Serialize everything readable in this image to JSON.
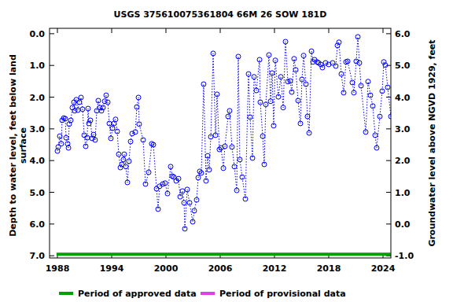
{
  "chart_data": {
    "type": "scatter",
    "title": "USGS 375610075361804 66M 26 SOW 181D",
    "y_label": "Depth to water level, feet below land surface",
    "y2_label": "Groundwater level above NGVD 1929, feet",
    "xlim": [
      1987.13,
      2024.87
    ],
    "xticks": [
      1988,
      1994,
      2000,
      2006,
      2012,
      2018,
      2024
    ],
    "ylim": [
      7.07,
      -0.17
    ],
    "yticks": [
      {
        "value": 0,
        "label": "0.0"
      },
      {
        "value": 1,
        "label": "1.0"
      },
      {
        "value": 2,
        "label": "2.0"
      },
      {
        "value": 3,
        "label": "3.0"
      },
      {
        "value": 4,
        "label": "4.0"
      },
      {
        "value": 5,
        "label": "5.0"
      },
      {
        "value": 6,
        "label": "6.0"
      },
      {
        "value": 7,
        "label": "7.0"
      }
    ],
    "y2lim": [
      -1.07,
      6.17
    ],
    "y2ticks": [
      {
        "value": -1,
        "label": "-1.0"
      },
      {
        "value": 0,
        "label": "0.0"
      },
      {
        "value": 1,
        "label": "1.0"
      },
      {
        "value": 2,
        "label": "2.0"
      },
      {
        "value": 3,
        "label": "3.0"
      },
      {
        "value": 4,
        "label": "4.0"
      },
      {
        "value": 5,
        "label": "5.0"
      },
      {
        "value": 6,
        "label": "6.0"
      }
    ],
    "legend": "bottom",
    "series": [
      {
        "type": "scatter",
        "color": "#0000ff",
        "marker": "circle",
        "line_style": "dotted",
        "x": [
          1988.0,
          1988.09,
          1988.26,
          1988.43,
          1988.52,
          1988.7,
          1988.87,
          1988.96,
          1989.13,
          1989.22,
          1989.3,
          1989.48,
          1989.65,
          1989.83,
          1989.91,
          1990.09,
          1990.26,
          1990.43,
          1990.61,
          1990.78,
          1990.96,
          1991.13,
          1991.3,
          1991.39,
          1991.48,
          1991.65,
          1991.83,
          1992.0,
          1992.17,
          1992.35,
          1992.52,
          1992.7,
          1992.87,
          1993.04,
          1993.22,
          1993.39,
          1993.57,
          1993.74,
          1993.91,
          1994.09,
          1994.26,
          1994.43,
          1994.61,
          1994.78,
          1994.96,
          1995.13,
          1995.3,
          1995.39,
          1995.57,
          1995.74,
          1995.91,
          1996.09,
          1996.26,
          1996.61,
          1996.78,
          1996.96,
          1997.04,
          1997.48,
          1997.74,
          1998.09,
          1998.43,
          1998.61,
          1998.96,
          1999.13,
          1999.3,
          1999.65,
          1999.91,
          2000.17,
          2000.52,
          2000.7,
          2000.87,
          2001.13,
          2001.39,
          2001.57,
          2001.83,
          2002.0,
          2002.09,
          2002.35,
          2002.61,
          2002.96,
          2003.13,
          2003.39,
          2003.57,
          2003.74,
          2003.91,
          2004.17,
          2004.43,
          2004.61,
          2004.78,
          2004.96,
          2005.22,
          2005.48,
          2005.65,
          2005.91,
          2006.09,
          2006.35,
          2006.52,
          2006.87,
          2007.04,
          2007.3,
          2007.57,
          2007.83,
          2008.0,
          2008.17,
          2008.43,
          2008.78,
          2009.13,
          2009.3,
          2009.57,
          2009.74,
          2010.0,
          2010.35,
          2010.43,
          2010.7,
          2010.87,
          2011.04,
          2011.39,
          2011.57,
          2011.74,
          2011.91,
          2012.09,
          2012.43,
          2012.7,
          2012.96,
          2013.22,
          2013.48,
          2013.74,
          2013.91,
          2014.17,
          2014.35,
          2014.61,
          2014.87,
          2015.04,
          2015.22,
          2015.48,
          2015.65,
          2015.83,
          2016.09,
          2016.26,
          2016.43,
          2016.7,
          2016.87,
          2017.13,
          2017.3,
          2017.65,
          2018.0,
          2018.43,
          2018.78,
          2018.96,
          2019.13,
          2019.39,
          2019.65,
          2019.91,
          2020.09,
          2020.61,
          2020.78,
          2021.04,
          2021.22,
          2021.39,
          2021.57,
          2022.09,
          2022.35,
          2022.61,
          2022.87,
          2023.13,
          2023.3,
          2023.65,
          2023.91,
          2024.09,
          2024.26,
          2024.52,
          2024.87
        ],
        "values": [
          3.7,
          3.57,
          3.23,
          3.47,
          2.73,
          2.66,
          2.68,
          3.28,
          3.47,
          3.6,
          2.85,
          2.73,
          2.33,
          2.16,
          2.43,
          2.08,
          2.41,
          2.16,
          2.01,
          2.38,
          3.2,
          3.55,
          3.28,
          2.36,
          2.83,
          2.73,
          3.3,
          3.18,
          3.35,
          2.43,
          2.11,
          2.33,
          2.43,
          2.33,
          2.13,
          1.94,
          2.16,
          2.83,
          3.3,
          2.98,
          2.83,
          2.7,
          3.08,
          3.8,
          4.22,
          4.12,
          3.97,
          3.8,
          4.19,
          4.69,
          4.02,
          3.4,
          3.15,
          3.1,
          2.31,
          2.01,
          2.85,
          3.35,
          4.74,
          4.37,
          3.47,
          3.5,
          4.89,
          5.53,
          4.81,
          4.74,
          4.71,
          5.04,
          4.19,
          4.49,
          4.52,
          4.64,
          4.57,
          5.14,
          4.96,
          5.33,
          6.15,
          4.91,
          5.33,
          5.93,
          5.58,
          5.24,
          4.54,
          4.34,
          4.39,
          1.59,
          4.64,
          3.85,
          4.29,
          3.25,
          0.62,
          3.2,
          1.91,
          3.65,
          3.6,
          4.24,
          3.55,
          2.61,
          2.43,
          3.57,
          4.19,
          4.94,
          0.72,
          3.97,
          4.52,
          5.21,
          1.27,
          2.63,
          3.92,
          1.36,
          1.79,
          0.82,
          2.16,
          3.23,
          4.12,
          2.23,
          0.67,
          2.13,
          1.24,
          2.9,
          0.84,
          1.99,
          1.36,
          2.33,
          0.25,
          1.51,
          1.49,
          1.84,
          0.79,
          1.14,
          2.11,
          2.83,
          1.44,
          0.69,
          1.59,
          2.61,
          3.13,
          0.55,
          0.89,
          0.82,
          0.89,
          0.92,
          0.97,
          1.07,
          0.92,
          0.97,
          0.92,
          1.02,
          0.37,
          0.27,
          1.27,
          1.86,
          0.89,
          0.87,
          1.54,
          1.86,
          0.87,
          0.1,
          0.92,
          1.64,
          3.1,
          1.51,
          1.94,
          2.28,
          3.2,
          3.6,
          2.61,
          1.81,
          0.89,
          0.99,
          1.69,
          2.61
        ]
      },
      {
        "name": "Period of approved data",
        "type": "line",
        "color": "#00a000",
        "line_style": "solid",
        "x": [
          1987.9,
          2024.85
        ],
        "values": [
          6.95,
          6.95
        ]
      },
      {
        "name": "Period of provisional data",
        "type": "line",
        "color": "#e040e0",
        "line_style": "solid",
        "x": [],
        "values": []
      }
    ]
  }
}
